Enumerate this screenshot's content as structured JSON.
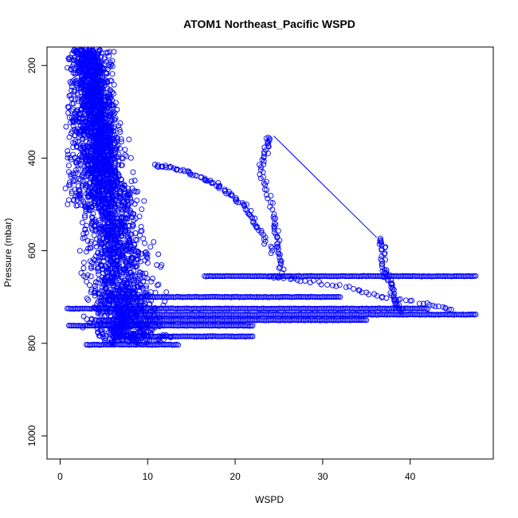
{
  "chart_data": {
    "type": "scatter",
    "title": "ATOM1 Northeast_Pacific WSPD",
    "xlabel": "WSPD",
    "ylabel": "Pressure (mbar)",
    "xlim": [
      -1.5,
      49.5
    ],
    "ylim": [
      1050,
      160
    ],
    "y_reversed": true,
    "grid": false,
    "legend": "none",
    "x_ticks": [
      0,
      10,
      20,
      30,
      40
    ],
    "y_ticks": [
      200,
      400,
      600,
      800,
      1000
    ],
    "marker": "open-circle",
    "color": "#0000ff",
    "point_groups": {
      "core_cloud": {
        "x_range": [
          0.5,
          14
        ],
        "y_range": [
          165,
          800
        ],
        "note_values": "dense scatter of soundings, most points between WSPD 1-12 and 170-800 mbar"
      },
      "horizontal_bands": [
        {
          "y": 655,
          "x": [
            16.5,
            47.5
          ]
        },
        {
          "y": 700,
          "x": [
            6,
            32
          ]
        },
        {
          "y": 725,
          "x": [
            0.8,
            42
          ]
        },
        {
          "y": 738,
          "x": [
            7,
            47.5
          ]
        },
        {
          "y": 750,
          "x": [
            4,
            35
          ]
        },
        {
          "y": 762,
          "x": [
            1,
            22
          ]
        },
        {
          "y": 785,
          "x": [
            6,
            22
          ]
        },
        {
          "y": 803,
          "x": [
            3,
            13.5
          ]
        }
      ],
      "arcs": [
        {
          "x": [
            11,
            12.5,
            14.5,
            16.5,
            18,
            19.5,
            21,
            22,
            23,
            24.5
          ],
          "y": [
            415,
            420,
            430,
            445,
            460,
            480,
            500,
            530,
            560,
            610
          ]
        },
        {
          "x": [
            24,
            23.5,
            23,
            23.5,
            24.5,
            24.8,
            25,
            25.3
          ],
          "y": [
            355,
            380,
            420,
            470,
            530,
            570,
            610,
            650
          ]
        },
        {
          "x": [
            36.5,
            37,
            36.8,
            37.5,
            38,
            38.5,
            39
          ],
          "y": [
            575,
            600,
            640,
            660,
            690,
            715,
            730
          ]
        },
        {
          "x": [
            24,
            28,
            33,
            37,
            42,
            45
          ],
          "y": [
            655,
            665,
            680,
            700,
            715,
            728
          ]
        }
      ],
      "line_segment": {
        "x": [
          24.4,
          36.2
        ],
        "y": [
          352,
          572
        ]
      }
    }
  }
}
